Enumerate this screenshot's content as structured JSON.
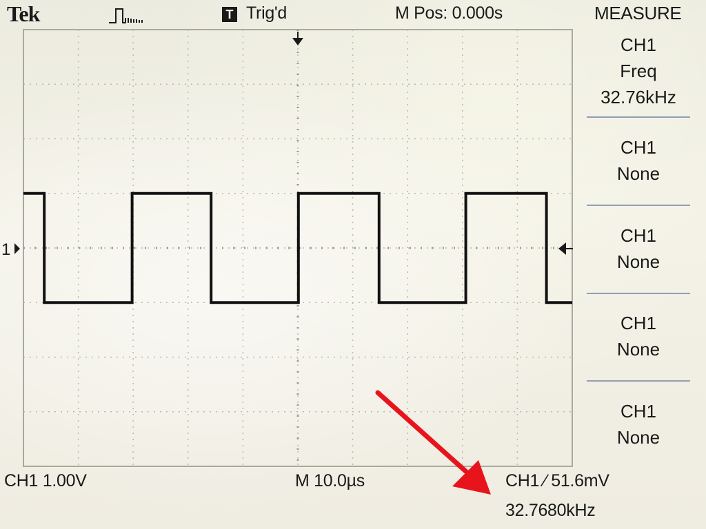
{
  "header": {
    "brand": "Tek",
    "acquisition_icon": "pulse-acquire-icon",
    "trigger_badge": "T",
    "trigger_status": "Trig'd",
    "m_pos": "M Pos: 0.000s"
  },
  "measure_menu": {
    "title": "MEASURE",
    "slots": [
      {
        "source": "CH1",
        "type": "Freq",
        "value": "32.76kHz"
      },
      {
        "source": "CH1",
        "type": "None"
      },
      {
        "source": "CH1",
        "type": "None"
      },
      {
        "source": "CH1",
        "type": "None"
      },
      {
        "source": "CH1",
        "type": "None"
      }
    ]
  },
  "footer": {
    "ch1_scale": "CH1  1.00V",
    "timebase": "M 10.0µs",
    "trigger": "CH1 ∕ 51.6mV",
    "frequency": "32.7680kHz"
  },
  "markers": {
    "ch1_ground": "1",
    "trigger_position_icon": "down-arrow-icon",
    "trigger_level_icon": "left-arrow-icon"
  },
  "colors": {
    "background": "#efeee3",
    "trace": "#111111",
    "grid": "#b9b9ad",
    "annotation_arrow": "#e8141c"
  },
  "chart_data": {
    "type": "line",
    "title": "",
    "xlabel": "",
    "ylabel": "",
    "x_unit": "µs",
    "y_unit": "V",
    "x_divisions": 10,
    "y_divisions": 8,
    "volts_per_div": 1.0,
    "time_per_div_us": 10.0,
    "xlim": [
      -50,
      50
    ],
    "ylim": [
      -4,
      4
    ],
    "grid": true,
    "series": [
      {
        "x": [
          -50,
          -46.2,
          -46.2,
          -30.2,
          -30.2,
          -15.8,
          -15.8,
          0.1,
          0.1,
          14.8,
          14.8,
          30.6,
          30.6,
          45.3,
          45.3,
          50
        ],
        "y": [
          1.0,
          1.0,
          -1.0,
          -1.0,
          1.0,
          1.0,
          -1.0,
          -1.0,
          1.0,
          1.0,
          -1.0,
          -1.0,
          1.0,
          1.0,
          -1.0,
          -1.0
        ]
      }
    ]
  }
}
